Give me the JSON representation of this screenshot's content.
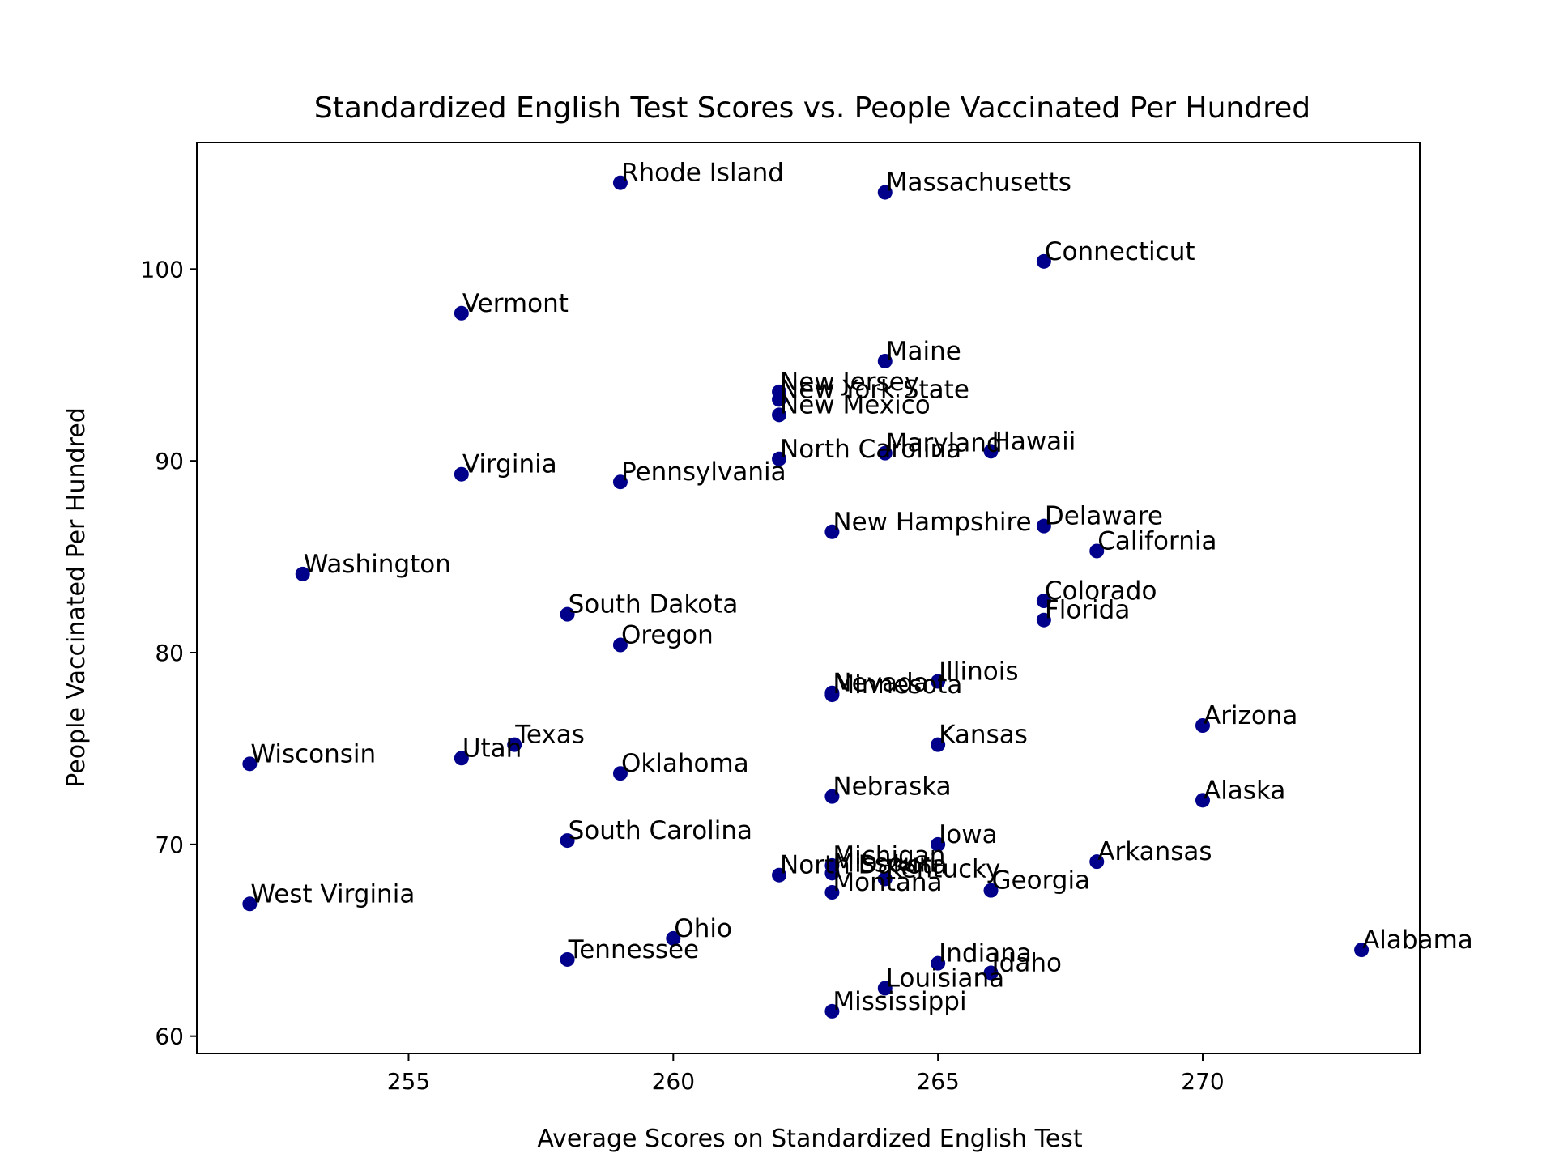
{
  "chart_data": {
    "type": "scatter",
    "title": "Standardized English Test Scores vs. People Vaccinated Per Hundred",
    "xlabel": "Average Scores on Standardized English Test",
    "ylabel": "People Vaccinated Per Hundred",
    "xlim": [
      251,
      274.1
    ],
    "ylim": [
      59.1,
      106.6
    ],
    "xticks": [
      255,
      260,
      265,
      270
    ],
    "yticks": [
      60,
      70,
      80,
      90,
      100
    ],
    "grid": false,
    "marker_color": "#00008b",
    "points": [
      {
        "label": "Rhode Island",
        "x": 259,
        "y": 104.5
      },
      {
        "label": "Massachusetts",
        "x": 264,
        "y": 104.0
      },
      {
        "label": "Connecticut",
        "x": 267,
        "y": 100.4
      },
      {
        "label": "Vermont",
        "x": 256,
        "y": 97.7
      },
      {
        "label": "Maine",
        "x": 264,
        "y": 95.2
      },
      {
        "label": "New Jersey",
        "x": 262,
        "y": 93.6
      },
      {
        "label": "New York State",
        "x": 262,
        "y": 93.2
      },
      {
        "label": "New Mexico",
        "x": 262,
        "y": 92.4
      },
      {
        "label": "North Carolina",
        "x": 262,
        "y": 90.1
      },
      {
        "label": "Maryland",
        "x": 264,
        "y": 90.4
      },
      {
        "label": "Hawaii",
        "x": 266,
        "y": 90.5
      },
      {
        "label": "Virginia",
        "x": 256,
        "y": 89.3
      },
      {
        "label": "Pennsylvania",
        "x": 259,
        "y": 88.9
      },
      {
        "label": "New Hampshire",
        "x": 263,
        "y": 86.3
      },
      {
        "label": "Delaware",
        "x": 267,
        "y": 86.6
      },
      {
        "label": "California",
        "x": 268,
        "y": 85.3
      },
      {
        "label": "Washington",
        "x": 253,
        "y": 84.1
      },
      {
        "label": "Colorado",
        "x": 267,
        "y": 82.7
      },
      {
        "label": "South Dakota",
        "x": 258,
        "y": 82.0
      },
      {
        "label": "Florida",
        "x": 267,
        "y": 81.7
      },
      {
        "label": "Oregon",
        "x": 259,
        "y": 80.4
      },
      {
        "label": "Illinois",
        "x": 265,
        "y": 78.5
      },
      {
        "label": "Nevada",
        "x": 263,
        "y": 77.9
      },
      {
        "label": "Minnesota",
        "x": 263,
        "y": 77.8
      },
      {
        "label": "Arizona",
        "x": 270,
        "y": 76.2
      },
      {
        "label": "Kansas",
        "x": 265,
        "y": 75.2
      },
      {
        "label": "Texas",
        "x": 257,
        "y": 75.2
      },
      {
        "label": "Utah",
        "x": 256,
        "y": 74.5
      },
      {
        "label": "Wisconsin",
        "x": 252,
        "y": 74.2
      },
      {
        "label": "Oklahoma",
        "x": 259,
        "y": 73.7
      },
      {
        "label": "Nebraska",
        "x": 263,
        "y": 72.5
      },
      {
        "label": "Alaska",
        "x": 270,
        "y": 72.3
      },
      {
        "label": "South Carolina",
        "x": 258,
        "y": 70.2
      },
      {
        "label": "Iowa",
        "x": 265,
        "y": 70.0
      },
      {
        "label": "Arkansas",
        "x": 268,
        "y": 69.1
      },
      {
        "label": "Michigan",
        "x": 263,
        "y": 68.9
      },
      {
        "label": "Missouri",
        "x": 263,
        "y": 68.5
      },
      {
        "label": "North Dakota",
        "x": 262,
        "y": 68.4
      },
      {
        "label": "Kentucky",
        "x": 264,
        "y": 68.2
      },
      {
        "label": "Montana",
        "x": 263,
        "y": 67.5
      },
      {
        "label": "Georgia",
        "x": 266,
        "y": 67.6
      },
      {
        "label": "West Virginia",
        "x": 252,
        "y": 66.9
      },
      {
        "label": "Ohio",
        "x": 260,
        "y": 65.1
      },
      {
        "label": "Alabama",
        "x": 273,
        "y": 64.5
      },
      {
        "label": "Tennessee",
        "x": 258,
        "y": 64.0
      },
      {
        "label": "Indiana",
        "x": 265,
        "y": 63.8
      },
      {
        "label": "Idaho",
        "x": 266,
        "y": 63.3
      },
      {
        "label": "Louisiana",
        "x": 264,
        "y": 62.5
      },
      {
        "label": "Mississippi",
        "x": 263,
        "y": 61.3
      }
    ]
  }
}
